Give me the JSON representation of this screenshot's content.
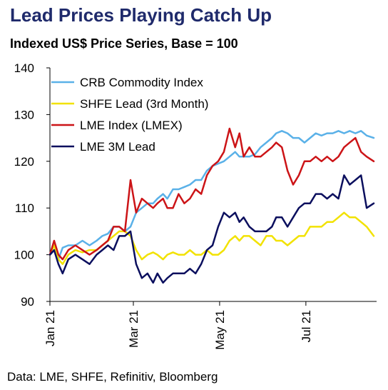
{
  "title": "Lead Prices Playing Catch Up",
  "subtitle": "Indexed US$ Price Series, Base = 100",
  "source": "Data: LME, SHFE, Refinitiv, Bloomberg",
  "chart_data": {
    "type": "line",
    "ylim": [
      90,
      140
    ],
    "yticks": [
      90,
      100,
      110,
      120,
      130,
      140
    ],
    "x_domain": [
      "2021-01-01",
      "2021-08-20"
    ],
    "x_ticks": [
      {
        "label": "Jan 21",
        "date": "2021-01-01"
      },
      {
        "label": "Mar 21",
        "date": "2021-03-01"
      },
      {
        "label": "May 21",
        "date": "2021-05-01"
      },
      {
        "label": "Jul 21",
        "date": "2021-07-01"
      }
    ],
    "legend_position": "top-left",
    "grid": false,
    "series": [
      {
        "name": "CRB Commodity Index",
        "color": "#5ab1e8",
        "points": [
          [
            "2021-01-01",
            100
          ],
          [
            "2021-01-04",
            101
          ],
          [
            "2021-01-07",
            99
          ],
          [
            "2021-01-10",
            101.5
          ],
          [
            "2021-01-14",
            102
          ],
          [
            "2021-01-19",
            102
          ],
          [
            "2021-01-24",
            103
          ],
          [
            "2021-01-29",
            102
          ],
          [
            "2021-02-03",
            103
          ],
          [
            "2021-02-07",
            104
          ],
          [
            "2021-02-11",
            104.5
          ],
          [
            "2021-02-15",
            106
          ],
          [
            "2021-02-19",
            106
          ],
          [
            "2021-02-23",
            105
          ],
          [
            "2021-02-27",
            106
          ],
          [
            "2021-03-03",
            109
          ],
          [
            "2021-03-07",
            110
          ],
          [
            "2021-03-11",
            111
          ],
          [
            "2021-03-15",
            111
          ],
          [
            "2021-03-18",
            112
          ],
          [
            "2021-03-22",
            113
          ],
          [
            "2021-03-25",
            112
          ],
          [
            "2021-03-29",
            114
          ],
          [
            "2021-04-02",
            114
          ],
          [
            "2021-04-06",
            114.5
          ],
          [
            "2021-04-10",
            115
          ],
          [
            "2021-04-14",
            116
          ],
          [
            "2021-04-18",
            116
          ],
          [
            "2021-04-22",
            118
          ],
          [
            "2021-04-26",
            119
          ],
          [
            "2021-04-30",
            119.5
          ],
          [
            "2021-05-04",
            120
          ],
          [
            "2021-05-08",
            121
          ],
          [
            "2021-05-12",
            122
          ],
          [
            "2021-05-15",
            121
          ],
          [
            "2021-05-18",
            121
          ],
          [
            "2021-05-22",
            121
          ],
          [
            "2021-05-26",
            121.5
          ],
          [
            "2021-05-30",
            123
          ],
          [
            "2021-06-03",
            124
          ],
          [
            "2021-06-07",
            125
          ],
          [
            "2021-06-10",
            126
          ],
          [
            "2021-06-14",
            126.5
          ],
          [
            "2021-06-18",
            126
          ],
          [
            "2021-06-22",
            125
          ],
          [
            "2021-06-26",
            125
          ],
          [
            "2021-06-30",
            124
          ],
          [
            "2021-07-04",
            125
          ],
          [
            "2021-07-08",
            126
          ],
          [
            "2021-07-12",
            125.5
          ],
          [
            "2021-07-16",
            126
          ],
          [
            "2021-07-20",
            126
          ],
          [
            "2021-07-24",
            126.5
          ],
          [
            "2021-07-28",
            126
          ],
          [
            "2021-08-01",
            126.5
          ],
          [
            "2021-08-05",
            126
          ],
          [
            "2021-08-09",
            126.5
          ],
          [
            "2021-08-13",
            125.5
          ],
          [
            "2021-08-18",
            125
          ]
        ]
      },
      {
        "name": "SHFE Lead (3rd Month)",
        "color": "#f2e200",
        "points": [
          [
            "2021-01-01",
            100
          ],
          [
            "2021-01-04",
            102
          ],
          [
            "2021-01-07",
            99
          ],
          [
            "2021-01-10",
            98
          ],
          [
            "2021-01-14",
            100
          ],
          [
            "2021-01-19",
            101
          ],
          [
            "2021-01-24",
            100.5
          ],
          [
            "2021-01-29",
            101
          ],
          [
            "2021-02-03",
            101
          ],
          [
            "2021-02-07",
            102
          ],
          [
            "2021-02-11",
            103
          ],
          [
            "2021-02-15",
            104
          ],
          [
            "2021-02-19",
            105
          ],
          [
            "2021-02-23",
            105
          ],
          [
            "2021-02-27",
            104
          ],
          [
            "2021-03-03",
            101
          ],
          [
            "2021-03-07",
            99
          ],
          [
            "2021-03-11",
            100
          ],
          [
            "2021-03-15",
            100.5
          ],
          [
            "2021-03-18",
            100
          ],
          [
            "2021-03-22",
            99
          ],
          [
            "2021-03-25",
            100
          ],
          [
            "2021-03-29",
            100.5
          ],
          [
            "2021-04-02",
            100
          ],
          [
            "2021-04-06",
            100
          ],
          [
            "2021-04-10",
            101
          ],
          [
            "2021-04-14",
            100
          ],
          [
            "2021-04-18",
            100
          ],
          [
            "2021-04-22",
            101
          ],
          [
            "2021-04-26",
            100
          ],
          [
            "2021-04-30",
            100
          ],
          [
            "2021-05-04",
            101
          ],
          [
            "2021-05-08",
            103
          ],
          [
            "2021-05-12",
            104
          ],
          [
            "2021-05-15",
            103
          ],
          [
            "2021-05-18",
            104
          ],
          [
            "2021-05-22",
            104
          ],
          [
            "2021-05-26",
            103
          ],
          [
            "2021-05-30",
            102
          ],
          [
            "2021-06-03",
            104
          ],
          [
            "2021-06-07",
            104
          ],
          [
            "2021-06-10",
            103
          ],
          [
            "2021-06-14",
            103
          ],
          [
            "2021-06-18",
            102
          ],
          [
            "2021-06-22",
            103
          ],
          [
            "2021-06-26",
            104
          ],
          [
            "2021-06-30",
            104
          ],
          [
            "2021-07-04",
            106
          ],
          [
            "2021-07-08",
            106
          ],
          [
            "2021-07-12",
            106
          ],
          [
            "2021-07-16",
            107
          ],
          [
            "2021-07-20",
            107
          ],
          [
            "2021-07-24",
            108
          ],
          [
            "2021-07-28",
            109
          ],
          [
            "2021-08-01",
            108
          ],
          [
            "2021-08-05",
            108
          ],
          [
            "2021-08-09",
            107
          ],
          [
            "2021-08-13",
            106
          ],
          [
            "2021-08-18",
            104
          ]
        ]
      },
      {
        "name": "LME Index (LMEX)",
        "color": "#cc1417",
        "points": [
          [
            "2021-01-01",
            100
          ],
          [
            "2021-01-04",
            103
          ],
          [
            "2021-01-07",
            100
          ],
          [
            "2021-01-10",
            99
          ],
          [
            "2021-01-14",
            101
          ],
          [
            "2021-01-19",
            102
          ],
          [
            "2021-01-24",
            101
          ],
          [
            "2021-01-29",
            100
          ],
          [
            "2021-02-03",
            101
          ],
          [
            "2021-02-07",
            102
          ],
          [
            "2021-02-11",
            103
          ],
          [
            "2021-02-15",
            106
          ],
          [
            "2021-02-19",
            106
          ],
          [
            "2021-02-23",
            105
          ],
          [
            "2021-02-27",
            116
          ],
          [
            "2021-03-03",
            109
          ],
          [
            "2021-03-07",
            112
          ],
          [
            "2021-03-11",
            111
          ],
          [
            "2021-03-15",
            110
          ],
          [
            "2021-03-18",
            111
          ],
          [
            "2021-03-22",
            112
          ],
          [
            "2021-03-25",
            110
          ],
          [
            "2021-03-29",
            110
          ],
          [
            "2021-04-02",
            113
          ],
          [
            "2021-04-06",
            111
          ],
          [
            "2021-04-10",
            112
          ],
          [
            "2021-04-14",
            114
          ],
          [
            "2021-04-18",
            113
          ],
          [
            "2021-04-22",
            117
          ],
          [
            "2021-04-26",
            119
          ],
          [
            "2021-04-30",
            120
          ],
          [
            "2021-05-04",
            122
          ],
          [
            "2021-05-08",
            127
          ],
          [
            "2021-05-12",
            123
          ],
          [
            "2021-05-15",
            126
          ],
          [
            "2021-05-18",
            121
          ],
          [
            "2021-05-22",
            123
          ],
          [
            "2021-05-26",
            121
          ],
          [
            "2021-05-30",
            121
          ],
          [
            "2021-06-03",
            122
          ],
          [
            "2021-06-07",
            123
          ],
          [
            "2021-06-10",
            124
          ],
          [
            "2021-06-14",
            123
          ],
          [
            "2021-06-18",
            118
          ],
          [
            "2021-06-22",
            115
          ],
          [
            "2021-06-26",
            117
          ],
          [
            "2021-06-30",
            120
          ],
          [
            "2021-07-04",
            120
          ],
          [
            "2021-07-08",
            121
          ],
          [
            "2021-07-12",
            120
          ],
          [
            "2021-07-16",
            121
          ],
          [
            "2021-07-20",
            120
          ],
          [
            "2021-07-24",
            121
          ],
          [
            "2021-07-28",
            123
          ],
          [
            "2021-08-01",
            124
          ],
          [
            "2021-08-05",
            125
          ],
          [
            "2021-08-09",
            122
          ],
          [
            "2021-08-13",
            121
          ],
          [
            "2021-08-18",
            120
          ]
        ]
      },
      {
        "name": "LME 3M Lead",
        "color": "#0b0f5e",
        "points": [
          [
            "2021-01-01",
            100
          ],
          [
            "2021-01-04",
            101
          ],
          [
            "2021-01-07",
            98
          ],
          [
            "2021-01-10",
            96
          ],
          [
            "2021-01-14",
            99
          ],
          [
            "2021-01-19",
            100
          ],
          [
            "2021-01-24",
            99
          ],
          [
            "2021-01-29",
            98
          ],
          [
            "2021-02-03",
            100
          ],
          [
            "2021-02-07",
            101
          ],
          [
            "2021-02-11",
            102
          ],
          [
            "2021-02-15",
            101
          ],
          [
            "2021-02-19",
            104
          ],
          [
            "2021-02-23",
            104
          ],
          [
            "2021-02-27",
            105
          ],
          [
            "2021-03-03",
            98
          ],
          [
            "2021-03-07",
            95
          ],
          [
            "2021-03-11",
            96
          ],
          [
            "2021-03-15",
            94
          ],
          [
            "2021-03-18",
            96
          ],
          [
            "2021-03-22",
            94
          ],
          [
            "2021-03-25",
            95
          ],
          [
            "2021-03-29",
            96
          ],
          [
            "2021-04-02",
            96
          ],
          [
            "2021-04-06",
            96
          ],
          [
            "2021-04-10",
            97
          ],
          [
            "2021-04-14",
            96
          ],
          [
            "2021-04-18",
            98
          ],
          [
            "2021-04-22",
            101
          ],
          [
            "2021-04-26",
            102
          ],
          [
            "2021-04-30",
            106
          ],
          [
            "2021-05-04",
            109
          ],
          [
            "2021-05-08",
            108
          ],
          [
            "2021-05-12",
            109
          ],
          [
            "2021-05-15",
            107
          ],
          [
            "2021-05-18",
            108
          ],
          [
            "2021-05-22",
            106
          ],
          [
            "2021-05-26",
            105
          ],
          [
            "2021-05-30",
            105
          ],
          [
            "2021-06-03",
            105
          ],
          [
            "2021-06-07",
            106
          ],
          [
            "2021-06-10",
            108
          ],
          [
            "2021-06-14",
            108
          ],
          [
            "2021-06-18",
            106
          ],
          [
            "2021-06-22",
            108
          ],
          [
            "2021-06-26",
            110
          ],
          [
            "2021-06-30",
            111
          ],
          [
            "2021-07-04",
            111
          ],
          [
            "2021-07-08",
            113
          ],
          [
            "2021-07-12",
            113
          ],
          [
            "2021-07-16",
            112
          ],
          [
            "2021-07-20",
            113
          ],
          [
            "2021-07-24",
            112
          ],
          [
            "2021-07-28",
            117
          ],
          [
            "2021-08-01",
            115
          ],
          [
            "2021-08-05",
            116
          ],
          [
            "2021-08-09",
            117
          ],
          [
            "2021-08-13",
            110
          ],
          [
            "2021-08-18",
            111
          ]
        ]
      }
    ]
  }
}
